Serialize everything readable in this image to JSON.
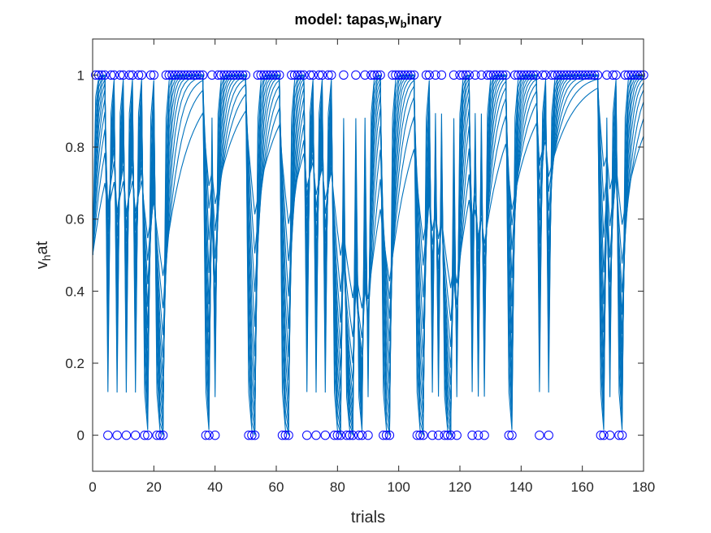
{
  "chart_data": {
    "type": "line",
    "title": "model: tapas_rw_binary",
    "title_parts": [
      {
        "text": "model: tapas",
        "sub": false
      },
      {
        "text": "r",
        "sub": true
      },
      {
        "text": "w",
        "sub": false
      },
      {
        "text": "b",
        "sub": true
      },
      {
        "text": "inary",
        "sub": false
      }
    ],
    "xlabel": "trials",
    "ylabel": "v_hat",
    "ylabel_parts": [
      {
        "text": "v",
        "sub": false
      },
      {
        "text": "h",
        "sub": true
      },
      {
        "text": "at",
        "sub": false
      }
    ],
    "xlim": [
      0,
      180
    ],
    "ylim": [
      -0.1,
      1.1
    ],
    "xticks": [
      0,
      20,
      40,
      60,
      80,
      100,
      120,
      140,
      160,
      180
    ],
    "xtick_labels": [
      "0",
      "20",
      "40",
      "60",
      "80",
      "100",
      "120",
      "140",
      "160",
      "180"
    ],
    "yticks": [
      0,
      0.2,
      0.4,
      0.6,
      0.8,
      1
    ],
    "ytick_labels": [
      "0",
      "0.2",
      "0.4",
      "0.6",
      "0.8",
      "1"
    ],
    "grid": false,
    "line_color": "#0072BD",
    "marker_color": "#0000FF",
    "num_traces": 12,
    "initial_value": 0.5,
    "outcomes": [
      1,
      1,
      1,
      1,
      0,
      1,
      1,
      0,
      1,
      1,
      0,
      1,
      1,
      0,
      1,
      1,
      0,
      0,
      1,
      1,
      0,
      0,
      0,
      1,
      1,
      1,
      1,
      1,
      1,
      1,
      1,
      1,
      1,
      1,
      1,
      1,
      0,
      0,
      1,
      0,
      1,
      1,
      1,
      1,
      1,
      1,
      1,
      1,
      1,
      1,
      0,
      0,
      0,
      1,
      1,
      1,
      1,
      1,
      1,
      1,
      1,
      0,
      0,
      0,
      1,
      1,
      1,
      1,
      1,
      0,
      1,
      1,
      0,
      1,
      1,
      0,
      1,
      1,
      0,
      0,
      0,
      1,
      0,
      0,
      0,
      1,
      0,
      0,
      1,
      0,
      1,
      1,
      1,
      1,
      0,
      0,
      0,
      1,
      1,
      1,
      1,
      1,
      1,
      1,
      1,
      0,
      0,
      0,
      1,
      1,
      0,
      1,
      0,
      1,
      0,
      0,
      0,
      1,
      0,
      1,
      1,
      1,
      1,
      0,
      1,
      0,
      1,
      0,
      1,
      1,
      1,
      1,
      1,
      1,
      1,
      0,
      0,
      1,
      1,
      1,
      1,
      1,
      1,
      1,
      1,
      0,
      1,
      1,
      0,
      1,
      1,
      1,
      1,
      1,
      1,
      1,
      1,
      1,
      1,
      1,
      1,
      1,
      1,
      1,
      1,
      0,
      0,
      1,
      0,
      1,
      1,
      0,
      0,
      1,
      1,
      1,
      1,
      1,
      1,
      1
    ]
  }
}
